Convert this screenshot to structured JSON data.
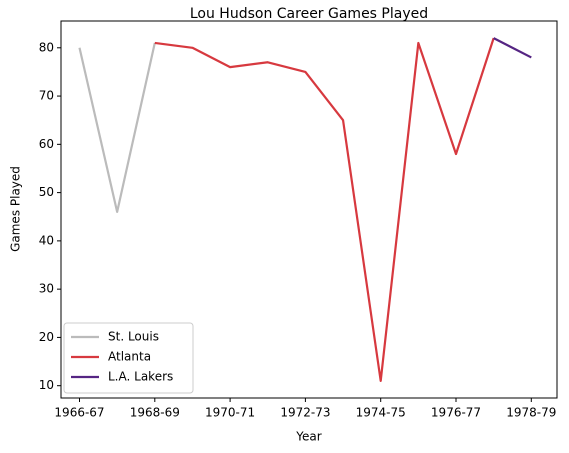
{
  "chart_data": {
    "type": "line",
    "title": "Lou Hudson Career Games Played",
    "xlabel": "Year",
    "ylabel": "Games Played",
    "x": [
      "1966-67",
      "1967-68",
      "1968-69",
      "1969-70",
      "1970-71",
      "1971-72",
      "1972-73",
      "1973-74",
      "1974-75",
      "1975-76",
      "1976-77",
      "1977-78",
      "1978-79"
    ],
    "xticks": [
      "1966-67",
      "1968-69",
      "1970-71",
      "1972-73",
      "1974-75",
      "1976-77",
      "1978-79"
    ],
    "yticks": [
      10,
      20,
      30,
      40,
      50,
      60,
      70,
      80
    ],
    "ylim": [
      7.45,
      85.55
    ],
    "grid": false,
    "legend_position": "lower-left",
    "series": [
      {
        "name": "St. Louis",
        "color": "#bbbbbb",
        "x": [
          "1966-67",
          "1967-68",
          "1968-69"
        ],
        "values": [
          80,
          46,
          81
        ]
      },
      {
        "name": "Atlanta",
        "color": "#d7393f",
        "x": [
          "1968-69",
          "1969-70",
          "1970-71",
          "1971-72",
          "1972-73",
          "1973-74",
          "1974-75",
          "1975-76",
          "1976-77",
          "1977-78"
        ],
        "values": [
          81,
          80,
          76,
          77,
          75,
          65,
          11,
          81,
          58,
          82
        ]
      },
      {
        "name": "L.A. Lakers",
        "color": "#552583",
        "x": [
          "1977-78",
          "1978-79"
        ],
        "values": [
          82,
          78
        ]
      }
    ]
  }
}
